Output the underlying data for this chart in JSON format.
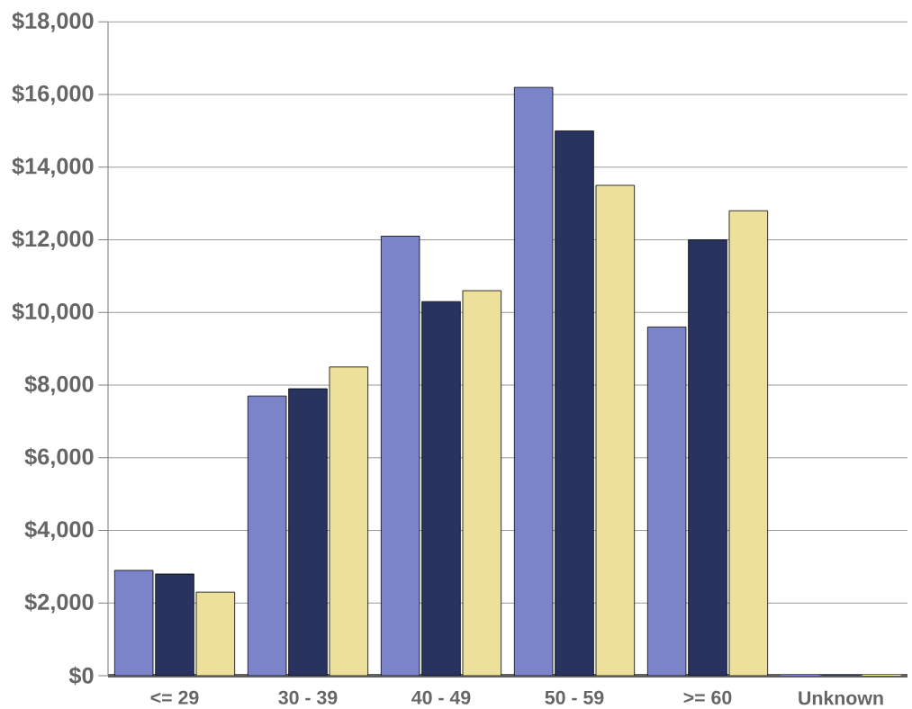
{
  "chart_data": {
    "type": "bar",
    "categories": [
      "<= 29",
      "30 - 39",
      "40 - 49",
      "50 - 59",
      ">= 60",
      "Unknown"
    ],
    "series": [
      {
        "color": "#7b83c9",
        "values": [
          2900,
          7700,
          12100,
          16200,
          9600,
          0
        ]
      },
      {
        "color": "#29335f",
        "values": [
          2800,
          7900,
          10300,
          15000,
          12000,
          0
        ]
      },
      {
        "color": "#ede09a",
        "values": [
          2300,
          8500,
          10600,
          13500,
          12800,
          0
        ]
      }
    ],
    "ylim": [
      0,
      18000
    ],
    "yticks": [
      {
        "value": 0,
        "label": "$0"
      },
      {
        "value": 2000,
        "label": "$2,000"
      },
      {
        "value": 4000,
        "label": "$4,000"
      },
      {
        "value": 6000,
        "label": "$6,000"
      },
      {
        "value": 8000,
        "label": "$8,000"
      },
      {
        "value": 10000,
        "label": "$10,000"
      },
      {
        "value": 12000,
        "label": "$12,000"
      },
      {
        "value": 14000,
        "label": "$14,000"
      },
      {
        "value": 16000,
        "label": "$16,000"
      },
      {
        "value": 18000,
        "label": "$18,000"
      }
    ],
    "grid": "y",
    "legend": false
  }
}
